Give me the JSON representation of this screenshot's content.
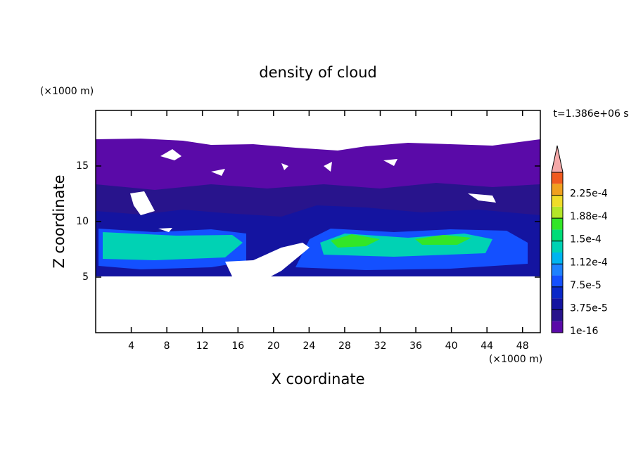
{
  "chart_data": {
    "type": "contour",
    "title": "density of cloud",
    "x_label": "X coordinate",
    "y_label": "Z coordinate",
    "x_unit": "(×1000 m)",
    "y_unit": "(×1000 m)",
    "annotation": "t=1.386e+06 s",
    "xlim": [
      0,
      50
    ],
    "ylim": [
      0,
      20
    ],
    "xticks": [
      4,
      8,
      12,
      16,
      20,
      24,
      28,
      32,
      36,
      40,
      44,
      48
    ],
    "yticks": [
      5,
      10,
      15
    ],
    "colorbar": {
      "levels": [
        {
          "value": 1e-16,
          "label": "1e-16"
        },
        {
          "value": 3.75e-05,
          "label": "3.75e-5"
        },
        {
          "value": 7.5e-05,
          "label": "7.5e-5"
        },
        {
          "value": 0.000112,
          "label": "1.12e-4"
        },
        {
          "value": 0.00015,
          "label": "1.5e-4"
        },
        {
          "value": 0.000188,
          "label": "1.88e-4"
        },
        {
          "value": 0.000225,
          "label": "2.25e-4"
        }
      ],
      "colors": [
        "#5a0aa8",
        "#28148c",
        "#1414a0",
        "#0a28c8",
        "#1450ff",
        "#1e82ff",
        "#00b4f0",
        "#00d2b4",
        "#00dc78",
        "#32e628",
        "#b4e628",
        "#f0dc28",
        "#f0a01e",
        "#f05a1e"
      ],
      "extend_color": "#f5a8a8"
    }
  }
}
